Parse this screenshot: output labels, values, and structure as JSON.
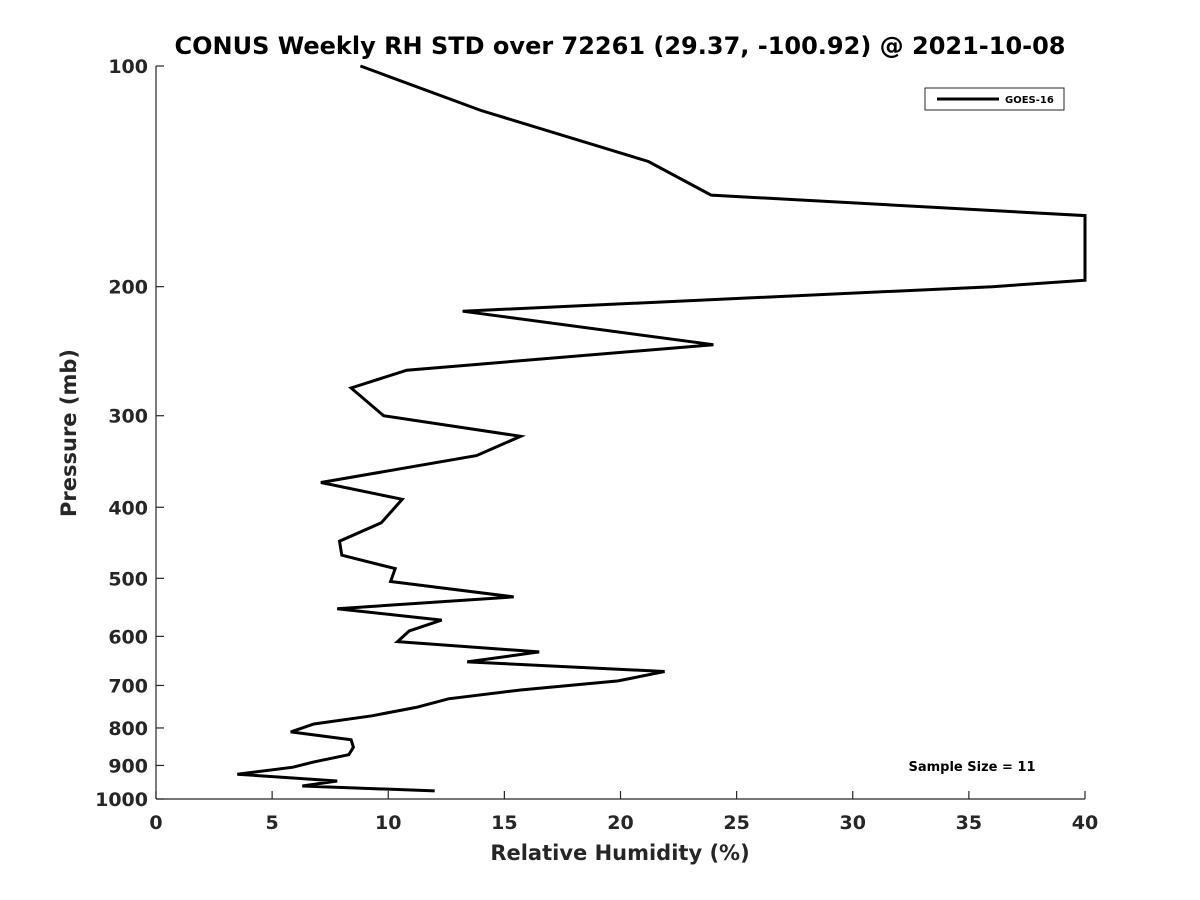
{
  "chart_data": {
    "type": "line",
    "title": "CONUS Weekly RH STD over 72261 (29.37, -100.92) @ 2021-10-08",
    "xlabel": "Relative Humidity (%)",
    "ylabel": "Pressure (mb)",
    "xlim": [
      0,
      40
    ],
    "ylim": [
      100,
      1000
    ],
    "y_scale": "log",
    "y_reversed": true,
    "grid": false,
    "legend_position": "top-right",
    "x_ticks": [
      "0",
      "5",
      "10",
      "15",
      "20",
      "25",
      "30",
      "35",
      "40"
    ],
    "y_ticks": [
      "100",
      "200",
      "300",
      "400",
      "500",
      "600",
      "700",
      "800",
      "900",
      "1000"
    ],
    "series": [
      {
        "name": "GOES-16",
        "color": "#000000",
        "x": [
          8.8,
          14.0,
          21.2,
          23.9,
          40,
          40,
          36,
          13.2,
          24.0,
          10.8,
          8.4,
          9.8,
          15.7,
          13.8,
          7.1,
          10.6,
          9.7,
          7.9,
          8.0,
          10.3,
          10.1,
          15.4,
          7.8,
          12.3,
          10.9,
          10.4,
          16.5,
          13.4,
          21.9,
          19.9,
          15.7,
          12.6,
          11.2,
          9.3,
          6.8,
          5.8,
          8.4,
          8.5,
          8.3,
          6.8,
          5.9,
          3.5,
          7.8,
          6.3,
          12.0
        ],
        "y": [
          100,
          115,
          135,
          150,
          160,
          196,
          200,
          216,
          240,
          260,
          275,
          300,
          320,
          340,
          370,
          390,
          420,
          445,
          465,
          485,
          505,
          530,
          550,
          570,
          590,
          610,
          630,
          650,
          670,
          690,
          710,
          730,
          750,
          770,
          790,
          810,
          830,
          850,
          870,
          890,
          905,
          925,
          945,
          960,
          975
        ]
      }
    ],
    "annotation": "Sample Size = 11"
  }
}
